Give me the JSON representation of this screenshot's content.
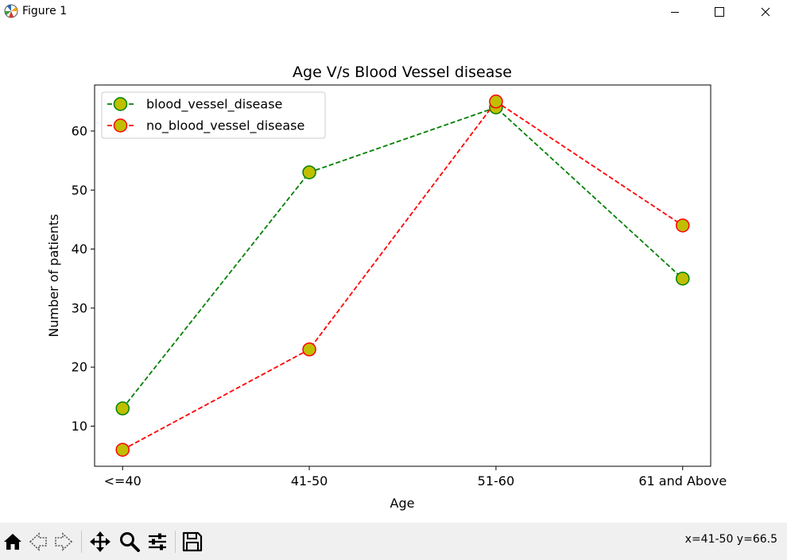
{
  "window": {
    "title": "Figure 1",
    "app_icon": "matplotlib-figure-icon"
  },
  "toolbar": {
    "buttons": [
      {
        "name": "home-icon",
        "tooltip": "Reset original view"
      },
      {
        "name": "back-arrow-icon",
        "tooltip": "Back"
      },
      {
        "name": "forward-arrow-icon",
        "tooltip": "Forward"
      },
      {
        "name": "pan-icon",
        "tooltip": "Pan"
      },
      {
        "name": "zoom-icon",
        "tooltip": "Zoom"
      },
      {
        "name": "configure-subplots-icon",
        "tooltip": "Configure subplots"
      },
      {
        "name": "save-icon",
        "tooltip": "Save"
      }
    ],
    "coord_readout": "x=41-50 y=66.5"
  },
  "chart_data": {
    "type": "line",
    "title": "Age V/s Blood Vessel disease",
    "xlabel": "Age",
    "ylabel": "Number of patients",
    "categories": [
      "<=40",
      "41-50",
      "51-60",
      "61 and Above"
    ],
    "ylim": [
      3.2,
      67.8
    ],
    "yticks": [
      10,
      20,
      30,
      40,
      50,
      60
    ],
    "grid": false,
    "legend_position": "upper-left",
    "series": [
      {
        "name": "blood_vessel_disease",
        "values": [
          13,
          53,
          64,
          35
        ],
        "line_color": "#008000",
        "line_style": "dashed",
        "marker": "circle",
        "marker_face": "#bfbf00",
        "marker_edge": "#008000"
      },
      {
        "name": "no_blood_vessel_disease",
        "values": [
          6,
          23,
          65,
          44
        ],
        "line_color": "#ff0000",
        "line_style": "dashed",
        "marker": "circle",
        "marker_face": "#bfbf00",
        "marker_edge": "#ff0000"
      }
    ]
  }
}
